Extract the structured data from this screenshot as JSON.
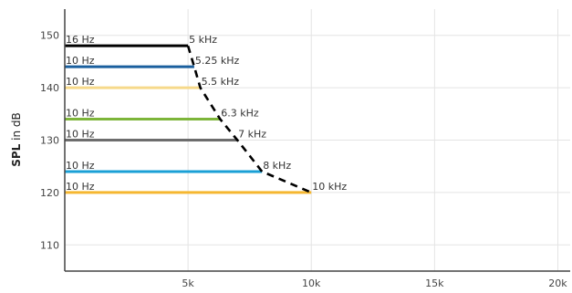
{
  "chart_data": {
    "type": "line",
    "ylabel_bold": "SPL",
    "ylabel_rest": " in dB",
    "xlabel": "",
    "xlim": [
      0,
      20500
    ],
    "ylim": [
      105,
      155
    ],
    "x_ticks": [
      {
        "value": 5000,
        "label": "5k"
      },
      {
        "value": 10000,
        "label": "10k"
      },
      {
        "value": 15000,
        "label": "15k"
      },
      {
        "value": 20000,
        "label": "20k"
      }
    ],
    "y_ticks": [
      {
        "value": 110,
        "label": "110"
      },
      {
        "value": 120,
        "label": "120"
      },
      {
        "value": 130,
        "label": "130"
      },
      {
        "value": 140,
        "label": "140"
      },
      {
        "value": 150,
        "label": "150"
      }
    ],
    "grid": true,
    "series": [
      {
        "start_label": "16 Hz",
        "end_label": "5 kHz",
        "x_start": 16,
        "x_end": 5000,
        "y": 148,
        "color": "#000000"
      },
      {
        "start_label": "10 Hz",
        "end_label": "5.25 kHz",
        "x_start": 10,
        "x_end": 5250,
        "y": 144,
        "color": "#1a5f9e"
      },
      {
        "start_label": "10 Hz",
        "end_label": "5.5 kHz",
        "x_start": 10,
        "x_end": 5500,
        "y": 140,
        "color": "#f6d98a"
      },
      {
        "start_label": "10 Hz",
        "end_label": "6.3 kHz",
        "x_start": 10,
        "x_end": 6300,
        "y": 134,
        "color": "#7db53a"
      },
      {
        "start_label": "10 Hz",
        "end_label": "7 kHz",
        "x_start": 10,
        "x_end": 7000,
        "y": 130,
        "color": "#6d6d6d"
      },
      {
        "start_label": "10 Hz",
        "end_label": "8 kHz",
        "x_start": 10,
        "x_end": 8000,
        "y": 124,
        "color": "#1aa0d6"
      },
      {
        "start_label": "10 Hz",
        "end_label": "10 kHz",
        "x_start": 10,
        "x_end": 10000,
        "y": 120,
        "color": "#f5b731"
      }
    ],
    "envelope": {
      "style": "dashed",
      "color": "#000000",
      "points": [
        {
          "x": 5000,
          "y": 148
        },
        {
          "x": 5250,
          "y": 144
        },
        {
          "x": 5500,
          "y": 140
        },
        {
          "x": 6300,
          "y": 134
        },
        {
          "x": 7000,
          "y": 130
        },
        {
          "x": 8000,
          "y": 124
        },
        {
          "x": 10000,
          "y": 120
        }
      ]
    }
  }
}
